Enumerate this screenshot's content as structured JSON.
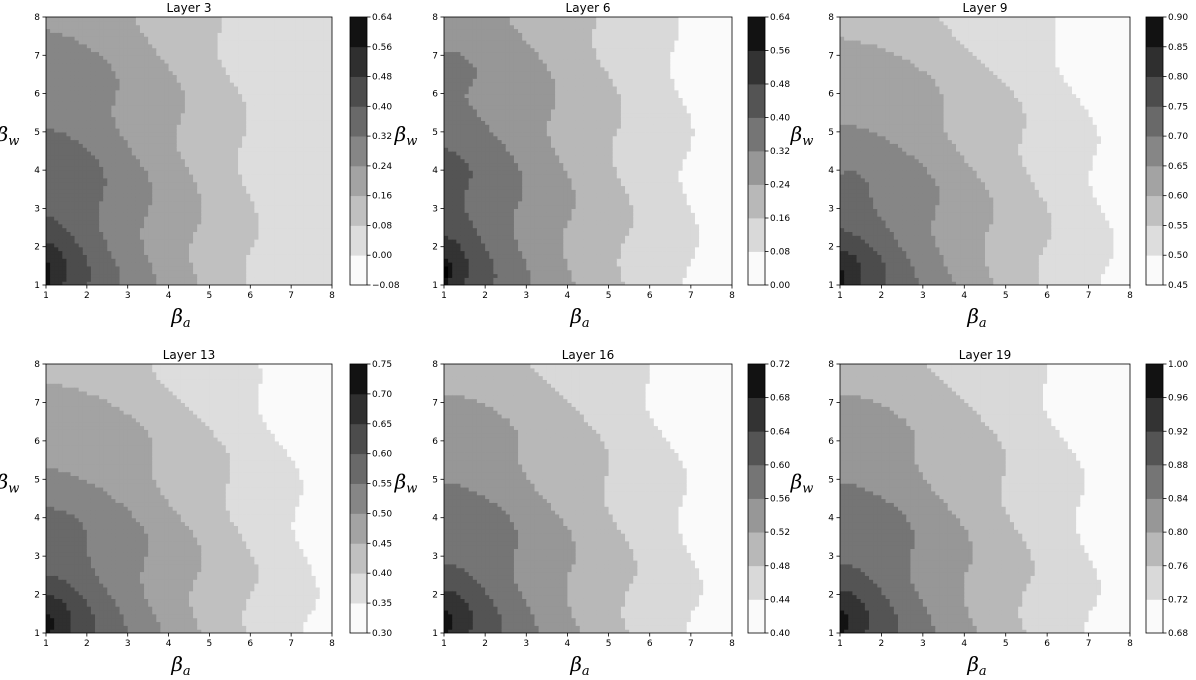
{
  "chart_data": [
    {
      "type": "contour",
      "title": "Layer 3",
      "xlabel_base": "β",
      "xlabel_sub": "a",
      "ylabel_base": "β",
      "ylabel_sub": "w",
      "x_ticks": [
        "1",
        "2",
        "3",
        "4",
        "5",
        "6",
        "7",
        "8"
      ],
      "y_ticks": [
        "1",
        "2",
        "3",
        "4",
        "5",
        "6",
        "7",
        "8"
      ],
      "xlim": [
        1,
        8
      ],
      "ylim": [
        1,
        8
      ],
      "colorbar_ticks": [
        "0.64",
        "0.56",
        "0.48",
        "0.40",
        "0.32",
        "0.24",
        "0.16",
        "0.08",
        "0.00",
        "−0.08"
      ],
      "levels": [
        -0.08,
        0.0,
        0.08,
        0.16,
        0.24,
        0.32,
        0.4,
        0.48,
        0.56,
        0.64
      ],
      "field": {
        "low": 0.0,
        "high": 0.6,
        "bias": [
          1.0,
          0.4
        ]
      }
    },
    {
      "type": "contour",
      "title": "Layer 6",
      "xlabel_base": "β",
      "xlabel_sub": "a",
      "ylabel_base": "β",
      "ylabel_sub": "w",
      "x_ticks": [
        "1",
        "2",
        "3",
        "4",
        "5",
        "6",
        "7",
        "8"
      ],
      "y_ticks": [
        "1",
        "2",
        "3",
        "4",
        "5",
        "6",
        "7",
        "8"
      ],
      "xlim": [
        1,
        8
      ],
      "ylim": [
        1,
        8
      ],
      "colorbar_ticks": [
        "0.64",
        "0.56",
        "0.48",
        "0.40",
        "0.32",
        "0.24",
        "0.16",
        "0.08",
        "0.00"
      ],
      "levels": [
        0.0,
        0.08,
        0.16,
        0.24,
        0.32,
        0.4,
        0.48,
        0.56,
        0.64
      ],
      "field": {
        "low": 0.06,
        "high": 0.6,
        "bias": [
          1.0,
          0.35
        ]
      }
    },
    {
      "type": "contour",
      "title": "Layer 9",
      "xlabel_base": "β",
      "xlabel_sub": "a",
      "ylabel_base": "β",
      "ylabel_sub": "w",
      "x_ticks": [
        "1",
        "2",
        "3",
        "4",
        "5",
        "6",
        "7",
        "8"
      ],
      "y_ticks": [
        "1",
        "2",
        "3",
        "4",
        "5",
        "6",
        "7",
        "8"
      ],
      "xlim": [
        1,
        8
      ],
      "ylim": [
        1,
        8
      ],
      "colorbar_ticks": [
        "0.90",
        "0.85",
        "0.80",
        "0.75",
        "0.70",
        "0.65",
        "0.60",
        "0.55",
        "0.50",
        "0.45"
      ],
      "levels": [
        0.45,
        0.5,
        0.55,
        0.6,
        0.65,
        0.7,
        0.75,
        0.8,
        0.85,
        0.9
      ],
      "field": {
        "low": 0.48,
        "high": 0.88,
        "bias": [
          1.0,
          0.6
        ]
      }
    },
    {
      "type": "contour",
      "title": "Layer 13",
      "xlabel_base": "β",
      "xlabel_sub": "a",
      "ylabel_base": "β",
      "ylabel_sub": "w",
      "x_ticks": [
        "1",
        "2",
        "3",
        "4",
        "5",
        "6",
        "7",
        "8"
      ],
      "y_ticks": [
        "1",
        "2",
        "3",
        "4",
        "5",
        "6",
        "7",
        "8"
      ],
      "xlim": [
        1,
        8
      ],
      "ylim": [
        1,
        8
      ],
      "colorbar_ticks": [
        "0.75",
        "0.70",
        "0.65",
        "0.60",
        "0.55",
        "0.50",
        "0.45",
        "0.40",
        "0.35",
        "0.30"
      ],
      "levels": [
        0.3,
        0.35,
        0.4,
        0.45,
        0.5,
        0.55,
        0.6,
        0.65,
        0.7,
        0.75
      ],
      "field": {
        "low": 0.33,
        "high": 0.74,
        "bias": [
          1.0,
          0.6
        ]
      }
    },
    {
      "type": "contour",
      "title": "Layer 16",
      "xlabel_base": "β",
      "xlabel_sub": "a",
      "ylabel_base": "β",
      "ylabel_sub": "w",
      "x_ticks": [
        "1",
        "2",
        "3",
        "4",
        "5",
        "6",
        "7",
        "8"
      ],
      "y_ticks": [
        "1",
        "2",
        "3",
        "4",
        "5",
        "6",
        "7",
        "8"
      ],
      "xlim": [
        1,
        8
      ],
      "ylim": [
        1,
        8
      ],
      "colorbar_ticks": [
        "0.72",
        "0.68",
        "0.64",
        "0.60",
        "0.56",
        "0.52",
        "0.48",
        "0.44",
        "0.40"
      ],
      "levels": [
        0.4,
        0.44,
        0.48,
        0.52,
        0.56,
        0.6,
        0.64,
        0.68,
        0.72
      ],
      "field": {
        "low": 0.42,
        "high": 0.71,
        "bias": [
          1.0,
          0.55
        ]
      }
    },
    {
      "type": "contour",
      "title": "Layer 19",
      "xlabel_base": "β",
      "xlabel_sub": "a",
      "ylabel_base": "β",
      "ylabel_sub": "w",
      "x_ticks": [
        "1",
        "2",
        "3",
        "4",
        "5",
        "6",
        "7",
        "8"
      ],
      "y_ticks": [
        "1",
        "2",
        "3",
        "4",
        "5",
        "6",
        "7",
        "8"
      ],
      "xlim": [
        1,
        8
      ],
      "ylim": [
        1,
        8
      ],
      "colorbar_ticks": [
        "1.00",
        "0.96",
        "0.92",
        "0.88",
        "0.84",
        "0.80",
        "0.76",
        "0.72",
        "0.68"
      ],
      "levels": [
        0.68,
        0.72,
        0.76,
        0.8,
        0.84,
        0.88,
        0.92,
        0.96,
        1.0
      ],
      "field": {
        "low": 0.7,
        "high": 0.99,
        "bias": [
          1.0,
          0.55
        ]
      }
    }
  ]
}
